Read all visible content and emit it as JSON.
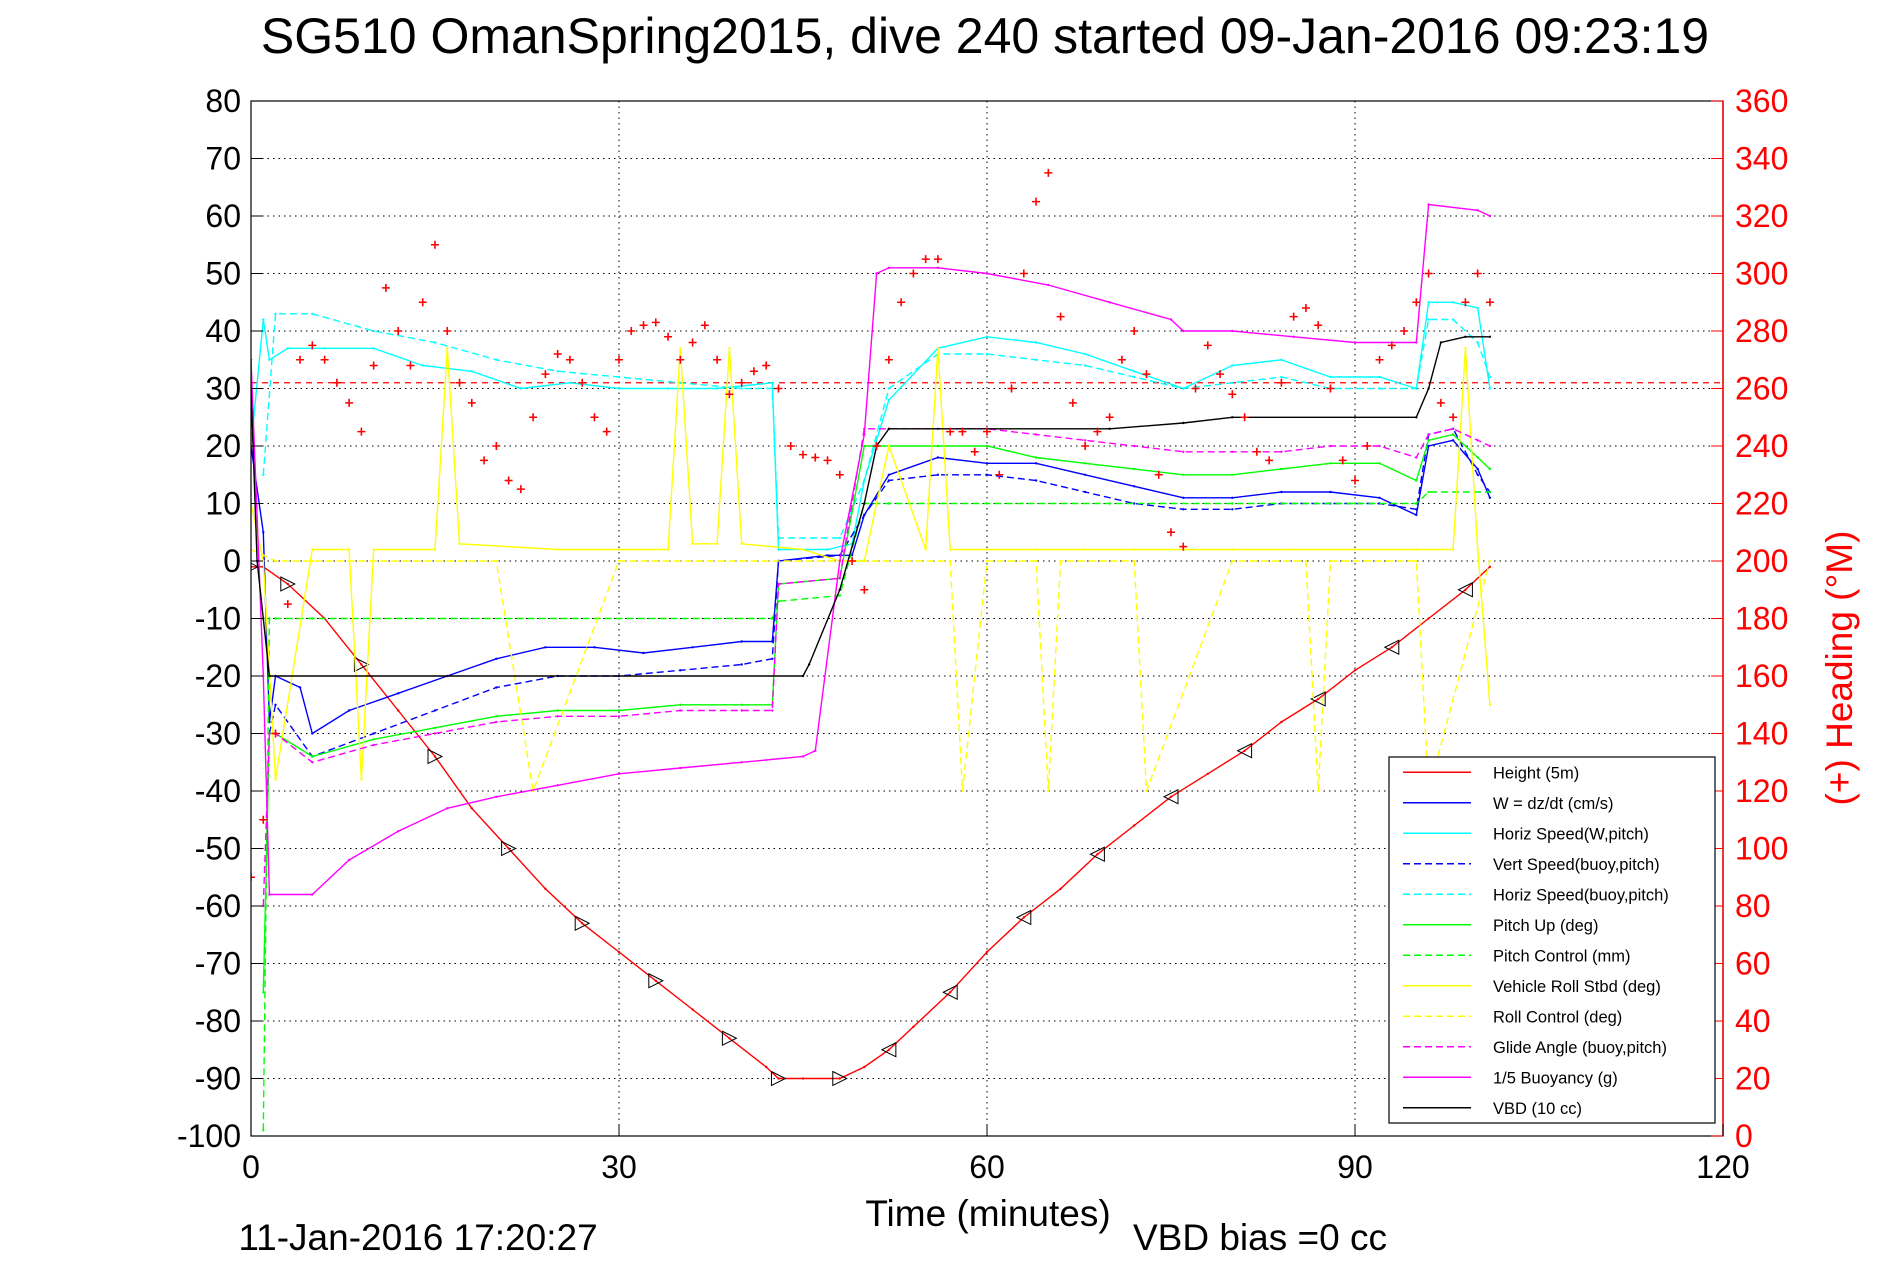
{
  "title": "SG510 OmanSpring2015, dive 240 started 09-Jan-2016 09:23:19",
  "footer": {
    "timestamp": "11-Jan-2016 17:20:27",
    "vbd_bias": "VBD bias =0 cc"
  },
  "colors": {
    "height": "#ff0000",
    "w": "#0000ff",
    "horiz_speed": "#00ffff",
    "pitch": "#00ff00",
    "roll": "#ffff00",
    "glide": "#ff00ff",
    "buoyancy": "#ff00ff",
    "vbd": "#000000",
    "heading": "#ff0000",
    "right_axis": "#ff0000"
  },
  "chart_data": {
    "type": "line",
    "xlabel": "Time (minutes)",
    "ylabel": "",
    "y2label": "(+) Heading (°M)",
    "xlim": [
      0,
      120
    ],
    "ylim": [
      -100,
      80
    ],
    "y2lim": [
      0,
      360
    ],
    "xticks": [
      0,
      30,
      60,
      90,
      120
    ],
    "yticks": [
      80,
      70,
      60,
      50,
      40,
      30,
      20,
      10,
      0,
      -10,
      -20,
      -30,
      -40,
      -50,
      -60,
      -70,
      -80,
      -90,
      -100
    ],
    "y2ticks": [
      360,
      340,
      320,
      300,
      280,
      260,
      240,
      220,
      200,
      180,
      160,
      140,
      120,
      100,
      80,
      60,
      40,
      20,
      0
    ],
    "grid": true,
    "legend_position": "bottom-right",
    "heading_reference": 262,
    "series": [
      {
        "name": "Height (5m)",
        "style": "solid",
        "color": "#ff0000",
        "x": [
          0,
          1,
          3,
          6,
          9,
          12,
          15,
          18,
          21,
          24,
          27,
          30,
          33,
          36,
          39,
          42,
          43,
          45,
          48,
          50,
          52,
          54,
          57,
          60,
          63,
          66,
          69,
          72,
          75,
          78,
          81,
          84,
          87,
          90,
          93,
          96,
          99,
          101
        ],
        "y": [
          -1,
          -1,
          -4,
          -10,
          -18,
          -26,
          -34,
          -43,
          -50,
          -57,
          -63,
          -68,
          -73,
          -78,
          -83,
          -88,
          -90,
          -90,
          -90,
          -88,
          -85,
          -81,
          -75,
          -68,
          -62,
          -57,
          -51,
          -46,
          -41,
          -37,
          -33,
          -28,
          -24,
          -19,
          -15,
          -10,
          -5,
          -1
        ]
      },
      {
        "name": "W = dz/dt (cm/s)",
        "style": "solid",
        "color": "#0000ff",
        "x": [
          0,
          1,
          1.5,
          2,
          4,
          5,
          8,
          12,
          16,
          20,
          24,
          28,
          32,
          36,
          40,
          42.5,
          43,
          47,
          49,
          50,
          52,
          56,
          60,
          64,
          68,
          72,
          76,
          80,
          84,
          88,
          92,
          95,
          96,
          98,
          100,
          101
        ],
        "y": [
          20,
          5,
          -28,
          -20,
          -22,
          -30,
          -26,
          -23,
          -20,
          -17,
          -15,
          -15,
          -16,
          -15,
          -14,
          -14,
          0,
          1,
          1,
          8,
          15,
          18,
          17,
          17,
          15,
          13,
          11,
          11,
          12,
          12,
          11,
          8,
          20,
          21,
          16,
          11
        ]
      },
      {
        "name": "Horiz Speed(W,pitch)",
        "style": "solid",
        "color": "#00ffff",
        "x": [
          0,
          1,
          1.5,
          3,
          6,
          10,
          14,
          18,
          22,
          26,
          30,
          34,
          38,
          42.5,
          43,
          47,
          49,
          50,
          52,
          56,
          60,
          64,
          68,
          72,
          76,
          80,
          84,
          88,
          92,
          95,
          96,
          98,
          100,
          101
        ],
        "y": [
          20,
          42,
          35,
          37,
          37,
          37,
          34,
          33,
          30,
          31,
          30,
          30,
          30,
          31,
          2,
          2,
          3,
          14,
          28,
          37,
          39,
          38,
          36,
          33,
          30,
          34,
          35,
          32,
          32,
          30,
          45,
          45,
          44,
          30
        ]
      },
      {
        "name": "Vert Speed(buoy,pitch)",
        "style": "dashed",
        "color": "#0000ff",
        "x": [
          1.5,
          2,
          5,
          10,
          15,
          20,
          25,
          30,
          35,
          40,
          42.5,
          43,
          48,
          50,
          52,
          56,
          60,
          64,
          68,
          72,
          76,
          80,
          84,
          88,
          92,
          95,
          96,
          98,
          100,
          101
        ],
        "y": [
          -30,
          -25,
          -34,
          -30,
          -26,
          -22,
          -20,
          -20,
          -19,
          -18,
          -17,
          0,
          1,
          8,
          14,
          15,
          15,
          14,
          12,
          10,
          9,
          9,
          10,
          10,
          10,
          9,
          22,
          23,
          15,
          12
        ]
      },
      {
        "name": "Horiz Speed(buoy,pitch)",
        "style": "dashed",
        "color": "#00ffff",
        "x": [
          1,
          2,
          5,
          10,
          15,
          20,
          25,
          30,
          35,
          40,
          42.5,
          43,
          48,
          50,
          52,
          56,
          60,
          64,
          68,
          72,
          76,
          80,
          84,
          88,
          92,
          95,
          96,
          98,
          100,
          101
        ],
        "y": [
          15,
          43,
          43,
          40,
          38,
          35,
          33,
          32,
          31,
          30,
          30,
          4,
          4,
          14,
          30,
          36,
          36,
          35,
          34,
          32,
          30,
          31,
          32,
          30,
          30,
          30,
          42,
          42,
          38,
          32
        ]
      },
      {
        "name": "Pitch Up (deg)",
        "style": "solid",
        "color": "#00ff00",
        "x": [
          1,
          1.5,
          2,
          5,
          10,
          15,
          20,
          25,
          30,
          35,
          40,
          42.5,
          43,
          48,
          50,
          52,
          56,
          60,
          64,
          68,
          72,
          76,
          80,
          84,
          88,
          92,
          95,
          96,
          98,
          100,
          101
        ],
        "y": [
          -75,
          -30,
          -30,
          -34,
          -31,
          -29,
          -27,
          -26,
          -26,
          -25,
          -25,
          -25,
          -4,
          -3,
          20,
          20,
          20,
          20,
          18,
          17,
          16,
          15,
          15,
          16,
          17,
          17,
          14,
          21,
          22,
          18,
          16
        ]
      },
      {
        "name": "Pitch Control (mm)",
        "style": "dashed",
        "color": "#00ff00",
        "x": [
          1,
          1.5,
          2,
          5,
          42.5,
          43,
          48,
          50,
          52,
          60,
          70,
          80,
          90,
          95,
          96,
          101
        ],
        "y": [
          -99,
          -10,
          -10,
          -10,
          -10,
          -7,
          -6,
          10,
          10,
          10,
          10,
          10,
          10,
          10,
          12,
          12
        ]
      },
      {
        "name": "Vehicle Roll Stbd (deg)",
        "style": "solid",
        "color": "#ffff00",
        "x": [
          0,
          1,
          2,
          5,
          8,
          9,
          10,
          15,
          16,
          17,
          25,
          30,
          34,
          35,
          36,
          38,
          39,
          40,
          45,
          48,
          50,
          52,
          55,
          56,
          57,
          60,
          64,
          68,
          72,
          76,
          80,
          85,
          90,
          95,
          98,
          99,
          100,
          101
        ],
        "y": [
          10,
          0,
          -38,
          2,
          2,
          -38,
          2,
          2,
          37,
          3,
          2,
          2,
          2,
          37,
          3,
          3,
          37,
          3,
          2,
          0,
          0,
          20,
          2,
          37,
          2,
          2,
          2,
          2,
          2,
          2,
          2,
          2,
          2,
          2,
          2,
          37,
          2,
          -25
        ]
      },
      {
        "name": "Roll Control (deg)",
        "style": "dashed",
        "color": "#ffff00",
        "x": [
          0,
          1,
          2,
          5,
          20,
          23,
          30,
          40,
          50,
          57,
          58,
          60,
          64,
          65,
          66,
          72,
          73,
          80,
          86,
          87,
          88,
          95,
          96,
          101
        ],
        "y": [
          2,
          1,
          0,
          0,
          0,
          -40,
          0,
          0,
          0,
          0,
          -40,
          0,
          0,
          -40,
          0,
          0,
          -40,
          0,
          0,
          -40,
          0,
          0,
          -40,
          0
        ]
      },
      {
        "name": "Glide Angle (buoy,pitch)",
        "style": "dashed",
        "color": "#ff00ff",
        "x": [
          1,
          1.5,
          2,
          5,
          10,
          15,
          20,
          25,
          30,
          35,
          40,
          42.5,
          43,
          48,
          50,
          52,
          56,
          60,
          64,
          68,
          72,
          76,
          80,
          84,
          88,
          92,
          95,
          96,
          98,
          100,
          101
        ],
        "y": [
          -60,
          -30,
          -30,
          -35,
          -32,
          -30,
          -28,
          -27,
          -27,
          -26,
          -26,
          -26,
          -4,
          -3,
          23,
          23,
          23,
          23,
          22,
          21,
          20,
          19,
          19,
          19,
          20,
          20,
          18,
          22,
          23,
          21,
          20
        ]
      },
      {
        "name": "1/5 Buoyancy (g)",
        "style": "solid",
        "color": "#ff00ff",
        "x": [
          0,
          1,
          1.5,
          5,
          8,
          12,
          16,
          20,
          25,
          30,
          35,
          40,
          45,
          46,
          48,
          50,
          51,
          52,
          56,
          60,
          65,
          70,
          75,
          76,
          80,
          85,
          90,
          95,
          96,
          100,
          101
        ],
        "y": [
          35,
          -20,
          -58,
          -58,
          -52,
          -47,
          -43,
          -41,
          -39,
          -37,
          -36,
          -35,
          -34,
          -33,
          0,
          22,
          50,
          51,
          51,
          50,
          48,
          45,
          42,
          40,
          40,
          39,
          38,
          38,
          62,
          61,
          60
        ]
      },
      {
        "name": "VBD (10 cc)",
        "style": "solid",
        "color": "#000000",
        "x": [
          0,
          0.5,
          1,
          1.5,
          45,
          45.5,
          48,
          50,
          51,
          52,
          60,
          70,
          76,
          80,
          90,
          95,
          96,
          97,
          99,
          101
        ],
        "y": [
          30,
          0,
          -10,
          -20,
          -20,
          -18,
          -5,
          10,
          20,
          23,
          23,
          23,
          24,
          25,
          25,
          25,
          30,
          38,
          39,
          39
        ]
      },
      {
        "name": "(+) Heading",
        "axis": "right",
        "style": "markers",
        "color": "#ff0000",
        "x": [
          0,
          1,
          2,
          3,
          4,
          5,
          6,
          7,
          8,
          9,
          10,
          11,
          12,
          13,
          14,
          15,
          16,
          17,
          18,
          19,
          20,
          21,
          22,
          23,
          24,
          25,
          26,
          27,
          28,
          29,
          30,
          31,
          32,
          33,
          34,
          35,
          36,
          37,
          38,
          39,
          40,
          41,
          42,
          43,
          44,
          45,
          46,
          47,
          48,
          49,
          50,
          51,
          52,
          53,
          54,
          55,
          56,
          57,
          58,
          59,
          60,
          61,
          62,
          63,
          64,
          65,
          66,
          67,
          68,
          69,
          70,
          71,
          72,
          73,
          74,
          75,
          76,
          77,
          78,
          79,
          80,
          81,
          82,
          83,
          84,
          85,
          86,
          87,
          88,
          89,
          90,
          91,
          92,
          93,
          94,
          95,
          96,
          97,
          98,
          99,
          100,
          101
        ],
        "y": [
          90,
          110,
          140,
          185,
          270,
          275,
          270,
          262,
          255,
          245,
          268,
          295,
          280,
          268,
          290,
          310,
          280,
          262,
          255,
          235,
          240,
          228,
          225,
          250,
          265,
          272,
          270,
          262,
          250,
          245,
          270,
          280,
          282,
          283,
          278,
          270,
          276,
          282,
          270,
          258,
          262,
          266,
          268,
          260,
          240,
          237,
          236,
          235,
          230,
          200,
          190,
          240,
          270,
          290,
          300,
          305,
          305,
          245,
          245,
          238,
          245,
          230,
          260,
          300,
          325,
          335,
          285,
          255,
          240,
          245,
          250,
          270,
          280,
          265,
          230,
          210,
          205,
          260,
          275,
          265,
          258,
          250,
          238,
          235,
          262,
          285,
          288,
          282,
          260,
          235,
          228,
          240,
          270,
          275,
          280,
          290,
          300,
          255,
          250,
          290,
          300,
          290
        ]
      }
    ]
  },
  "legend": {
    "items": [
      {
        "label": "Height (5m)",
        "color": "#ff0000",
        "style": "solid"
      },
      {
        "label": "W = dz/dt (cm/s)",
        "color": "#0000ff",
        "style": "solid"
      },
      {
        "label": "Horiz Speed(W,pitch)",
        "color": "#00ffff",
        "style": "solid"
      },
      {
        "label": "Vert Speed(buoy,pitch)",
        "color": "#0000ff",
        "style": "dashed"
      },
      {
        "label": "Horiz Speed(buoy,pitch)",
        "color": "#00ffff",
        "style": "dashed"
      },
      {
        "label": "Pitch Up (deg)",
        "color": "#00ff00",
        "style": "solid"
      },
      {
        "label": "Pitch Control (mm)",
        "color": "#00ff00",
        "style": "dashed"
      },
      {
        "label": "Vehicle Roll Stbd (deg)",
        "color": "#ffff00",
        "style": "solid"
      },
      {
        "label": "Roll Control (deg)",
        "color": "#ffff00",
        "style": "dashed"
      },
      {
        "label": "Glide Angle (buoy,pitch)",
        "color": "#ff00ff",
        "style": "dashed"
      },
      {
        "label": "1/5 Buoyancy (g)",
        "color": "#ff00ff",
        "style": "solid"
      },
      {
        "label": "VBD (10 cc)",
        "color": "#000000",
        "style": "solid"
      }
    ]
  }
}
